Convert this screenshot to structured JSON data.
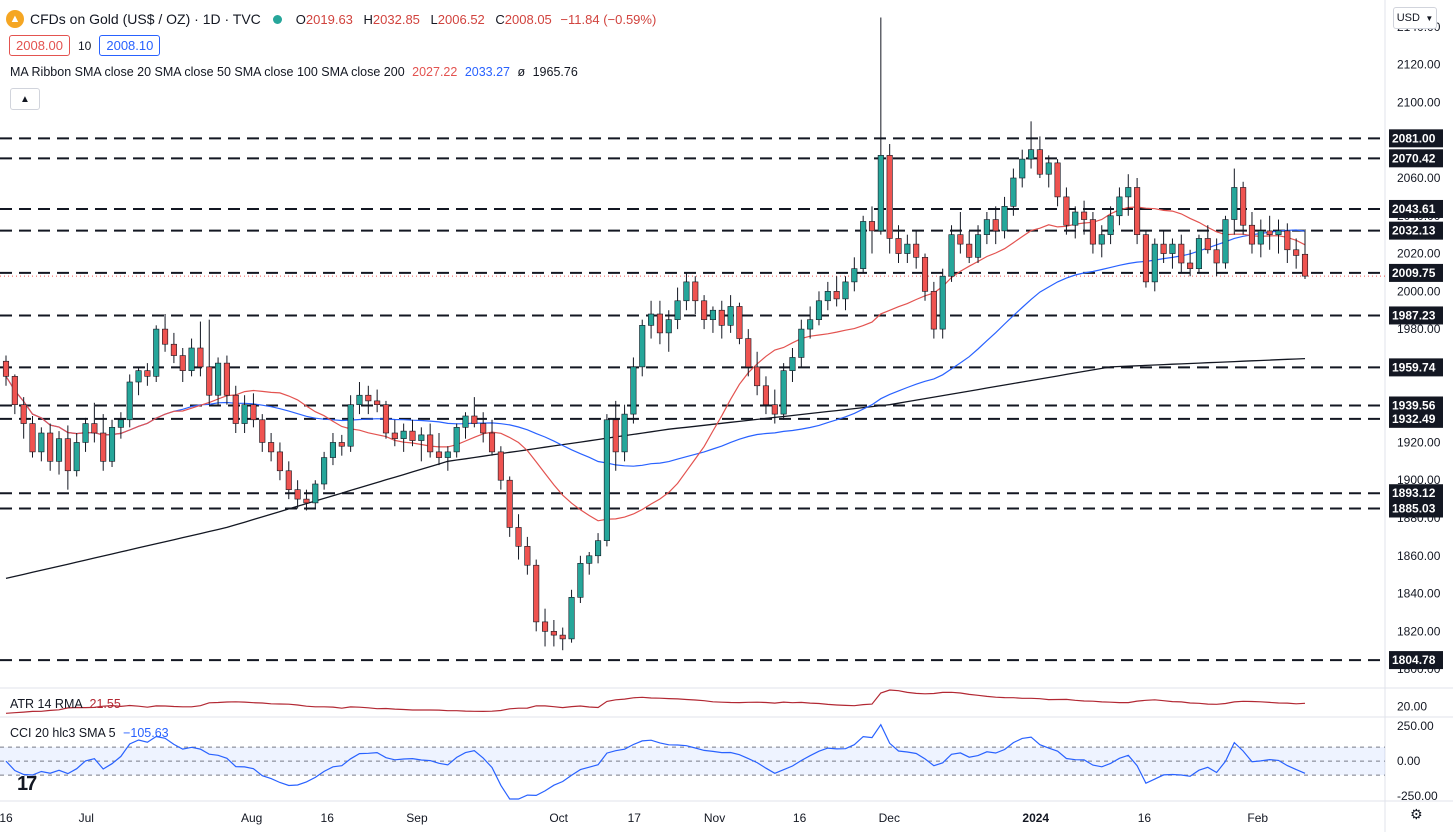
{
  "header": {
    "title": "CFDs on Gold (US$ / OZ) · 1D · TVC",
    "ohlc": [
      {
        "key": "O",
        "value": "2019.63"
      },
      {
        "key": "H",
        "value": "2032.85"
      },
      {
        "key": "L",
        "value": "2006.52"
      },
      {
        "key": "C",
        "value": "2008.05"
      }
    ],
    "change": "−11.84 (−0.59%)",
    "bid": "2008.00",
    "spread": "10",
    "ask": "2008.10"
  },
  "indicators": {
    "ma_ribbon_label": "MA Ribbon SMA close 20 SMA close 50 SMA close 100 SMA close 200",
    "ma_values": [
      "2027.22",
      "2033.27",
      "ø",
      "1965.76"
    ],
    "atr_label": "ATR 14 RMA",
    "atr_value": "21.55",
    "cci_label": "CCI 20 hlc3 SMA 5",
    "cci_value": "−105.63"
  },
  "currency_button": "USD",
  "collapse_icon": "chevron-up-icon",
  "colors": {
    "up": "#26a69a",
    "down": "#ef5350",
    "sma20": "#e35350",
    "sma50": "#2962ff",
    "sma200": "#131722",
    "atr": "#b22833",
    "cci": "#2962ff"
  },
  "chart_data": {
    "type": "candlestick",
    "y_ticks": [
      2140,
      2120,
      2100,
      2080,
      2060,
      2040,
      2020,
      2000,
      1980,
      1960,
      1940,
      1920,
      1900,
      1880,
      1860,
      1840,
      1820,
      1800
    ],
    "ylim": [
      1790,
      2150
    ],
    "x_labels": [
      "16",
      "Jul",
      "Aug",
      "16",
      "Sep",
      "Oct",
      "17",
      "Nov",
      "16",
      "Dec",
      "2024",
      "16",
      "Feb"
    ],
    "levels": [
      2081.0,
      2070.42,
      2043.61,
      2032.13,
      2009.75,
      1987.23,
      1959.74,
      1939.56,
      1932.49,
      1893.12,
      1885.03,
      1804.78
    ],
    "last_price": 2008.05,
    "candles": [
      [
        1963,
        1966,
        1950,
        1955
      ],
      [
        1955,
        1956,
        1935,
        1940
      ],
      [
        1940,
        1944,
        1922,
        1930
      ],
      [
        1930,
        1934,
        1912,
        1915
      ],
      [
        1915,
        1928,
        1910,
        1925
      ],
      [
        1925,
        1930,
        1905,
        1910
      ],
      [
        1910,
        1926,
        1903,
        1922
      ],
      [
        1922,
        1929,
        1895,
        1905
      ],
      [
        1905,
        1925,
        1902,
        1920
      ],
      [
        1920,
        1933,
        1915,
        1930
      ],
      [
        1930,
        1941,
        1920,
        1925
      ],
      [
        1925,
        1935,
        1905,
        1910
      ],
      [
        1910,
        1932,
        1907,
        1928
      ],
      [
        1928,
        1936,
        1922,
        1932
      ],
      [
        1932,
        1956,
        1928,
        1952
      ],
      [
        1952,
        1960,
        1945,
        1958
      ],
      [
        1958,
        1962,
        1950,
        1955
      ],
      [
        1955,
        1982,
        1952,
        1980
      ],
      [
        1980,
        1988,
        1968,
        1972
      ],
      [
        1972,
        1978,
        1962,
        1966
      ],
      [
        1966,
        1970,
        1952,
        1958
      ],
      [
        1958,
        1975,
        1955,
        1970
      ],
      [
        1970,
        1984,
        1955,
        1960
      ],
      [
        1960,
        1985,
        1940,
        1945
      ],
      [
        1945,
        1965,
        1940,
        1962
      ],
      [
        1962,
        1966,
        1940,
        1945
      ],
      [
        1945,
        1950,
        1925,
        1930
      ],
      [
        1930,
        1945,
        1925,
        1940
      ],
      [
        1940,
        1946,
        1928,
        1932
      ],
      [
        1932,
        1935,
        1915,
        1920
      ],
      [
        1920,
        1925,
        1910,
        1915
      ],
      [
        1915,
        1920,
        1900,
        1905
      ],
      [
        1905,
        1910,
        1890,
        1895
      ],
      [
        1895,
        1900,
        1885,
        1890
      ],
      [
        1890,
        1895,
        1884,
        1888
      ],
      [
        1888,
        1900,
        1885,
        1898
      ],
      [
        1898,
        1915,
        1895,
        1912
      ],
      [
        1912,
        1925,
        1908,
        1920
      ],
      [
        1920,
        1924,
        1913,
        1918
      ],
      [
        1918,
        1945,
        1915,
        1940
      ],
      [
        1940,
        1952,
        1935,
        1945
      ],
      [
        1945,
        1950,
        1935,
        1942
      ],
      [
        1942,
        1948,
        1936,
        1940
      ],
      [
        1940,
        1942,
        1922,
        1925
      ],
      [
        1925,
        1932,
        1918,
        1922
      ],
      [
        1922,
        1930,
        1915,
        1926
      ],
      [
        1926,
        1932,
        1918,
        1921
      ],
      [
        1921,
        1928,
        1910,
        1924
      ],
      [
        1924,
        1930,
        1912,
        1915
      ],
      [
        1915,
        1925,
        1908,
        1912
      ],
      [
        1912,
        1918,
        1905,
        1915
      ],
      [
        1915,
        1930,
        1912,
        1928
      ],
      [
        1928,
        1936,
        1922,
        1934
      ],
      [
        1934,
        1944,
        1928,
        1930
      ],
      [
        1930,
        1936,
        1920,
        1925
      ],
      [
        1925,
        1932,
        1913,
        1915
      ],
      [
        1915,
        1918,
        1895,
        1900
      ],
      [
        1900,
        1902,
        1870,
        1875
      ],
      [
        1875,
        1882,
        1858,
        1865
      ],
      [
        1865,
        1870,
        1850,
        1855
      ],
      [
        1855,
        1858,
        1820,
        1825
      ],
      [
        1825,
        1832,
        1812,
        1820
      ],
      [
        1820,
        1826,
        1812,
        1818
      ],
      [
        1818,
        1822,
        1810,
        1816
      ],
      [
        1816,
        1842,
        1814,
        1838
      ],
      [
        1838,
        1860,
        1835,
        1856
      ],
      [
        1856,
        1862,
        1850,
        1860
      ],
      [
        1860,
        1872,
        1856,
        1868
      ],
      [
        1868,
        1935,
        1865,
        1932
      ],
      [
        1932,
        1942,
        1905,
        1915
      ],
      [
        1915,
        1940,
        1910,
        1935
      ],
      [
        1935,
        1965,
        1930,
        1960
      ],
      [
        1960,
        1985,
        1955,
        1982
      ],
      [
        1982,
        1995,
        1975,
        1988
      ],
      [
        1988,
        1995,
        1972,
        1978
      ],
      [
        1978,
        1990,
        1968,
        1985
      ],
      [
        1985,
        2002,
        1980,
        1995
      ],
      [
        1995,
        2010,
        1990,
        2005
      ],
      [
        2005,
        2008,
        1988,
        1995
      ],
      [
        1995,
        1998,
        1980,
        1985
      ],
      [
        1985,
        1992,
        1978,
        1990
      ],
      [
        1990,
        1995,
        1975,
        1982
      ],
      [
        1982,
        1998,
        1978,
        1992
      ],
      [
        1992,
        1994,
        1972,
        1975
      ],
      [
        1975,
        1980,
        1955,
        1960
      ],
      [
        1960,
        1968,
        1945,
        1950
      ],
      [
        1950,
        1955,
        1935,
        1940
      ],
      [
        1940,
        1948,
        1930,
        1935
      ],
      [
        1935,
        1962,
        1932,
        1958
      ],
      [
        1958,
        1970,
        1952,
        1965
      ],
      [
        1965,
        1985,
        1960,
        1980
      ],
      [
        1980,
        1992,
        1975,
        1985
      ],
      [
        1985,
        2000,
        1982,
        1995
      ],
      [
        1995,
        2005,
        1990,
        2000
      ],
      [
        2000,
        2008,
        1992,
        1996
      ],
      [
        1996,
        2008,
        1990,
        2005
      ],
      [
        2005,
        2018,
        2000,
        2012
      ],
      [
        2012,
        2040,
        2010,
        2037
      ],
      [
        2037,
        2045,
        2020,
        2032
      ],
      [
        2032,
        2145,
        2030,
        2072
      ],
      [
        2072,
        2078,
        2020,
        2028
      ],
      [
        2028,
        2035,
        2015,
        2020
      ],
      [
        2020,
        2030,
        2015,
        2025
      ],
      [
        2025,
        2032,
        2012,
        2018
      ],
      [
        2018,
        2020,
        1995,
        2000
      ],
      [
        2000,
        2005,
        1975,
        1980
      ],
      [
        1980,
        2012,
        1975,
        2008
      ],
      [
        2008,
        2035,
        2005,
        2030
      ],
      [
        2030,
        2042,
        2020,
        2025
      ],
      [
        2025,
        2032,
        2015,
        2018
      ],
      [
        2018,
        2035,
        2015,
        2030
      ],
      [
        2030,
        2042,
        2025,
        2038
      ],
      [
        2038,
        2045,
        2025,
        2032
      ],
      [
        2032,
        2050,
        2028,
        2045
      ],
      [
        2045,
        2065,
        2040,
        2060
      ],
      [
        2060,
        2075,
        2055,
        2070
      ],
      [
        2070,
        2090,
        2065,
        2075
      ],
      [
        2075,
        2082,
        2060,
        2062
      ],
      [
        2062,
        2072,
        2055,
        2068
      ],
      [
        2068,
        2070,
        2045,
        2050
      ],
      [
        2050,
        2055,
        2030,
        2035
      ],
      [
        2035,
        2045,
        2028,
        2042
      ],
      [
        2042,
        2048,
        2030,
        2038
      ],
      [
        2038,
        2042,
        2020,
        2025
      ],
      [
        2025,
        2035,
        2018,
        2030
      ],
      [
        2030,
        2045,
        2025,
        2040
      ],
      [
        2040,
        2055,
        2035,
        2050
      ],
      [
        2050,
        2062,
        2040,
        2055
      ],
      [
        2055,
        2060,
        2025,
        2030
      ],
      [
        2030,
        2032,
        2002,
        2005
      ],
      [
        2005,
        2028,
        2000,
        2025
      ],
      [
        2025,
        2032,
        2015,
        2020
      ],
      [
        2020,
        2028,
        2012,
        2025
      ],
      [
        2025,
        2030,
        2010,
        2015
      ],
      [
        2015,
        2022,
        2008,
        2012
      ],
      [
        2012,
        2030,
        2010,
        2028
      ],
      [
        2028,
        2035,
        2020,
        2022
      ],
      [
        2022,
        2028,
        2008,
        2015
      ],
      [
        2015,
        2040,
        2012,
        2038
      ],
      [
        2038,
        2065,
        2030,
        2055
      ],
      [
        2055,
        2058,
        2030,
        2035
      ],
      [
        2035,
        2042,
        2020,
        2025
      ],
      [
        2025,
        2038,
        2018,
        2032
      ],
      [
        2032,
        2040,
        2022,
        2030
      ],
      [
        2030,
        2038,
        2020,
        2032
      ],
      [
        2032,
        2036,
        2015,
        2022
      ],
      [
        2022,
        2028,
        2012,
        2019
      ],
      [
        2019.63,
        2032.85,
        2006.52,
        2008.05
      ]
    ],
    "sma_200_anchors": [
      [
        0,
        1848
      ],
      [
        25,
        1875
      ],
      [
        50,
        1910
      ],
      [
        75,
        1927
      ],
      [
        100,
        1940
      ],
      [
        125,
        1960
      ],
      [
        150,
        1965
      ]
    ],
    "atr_ylim": [
      15,
      30
    ],
    "atr_ticks": [
      20.0
    ],
    "cci_ylim": [
      -270,
      300
    ],
    "cci_ticks": [
      250.0,
      0.0,
      -250.0
    ],
    "cci_band": [
      100,
      -100
    ]
  }
}
